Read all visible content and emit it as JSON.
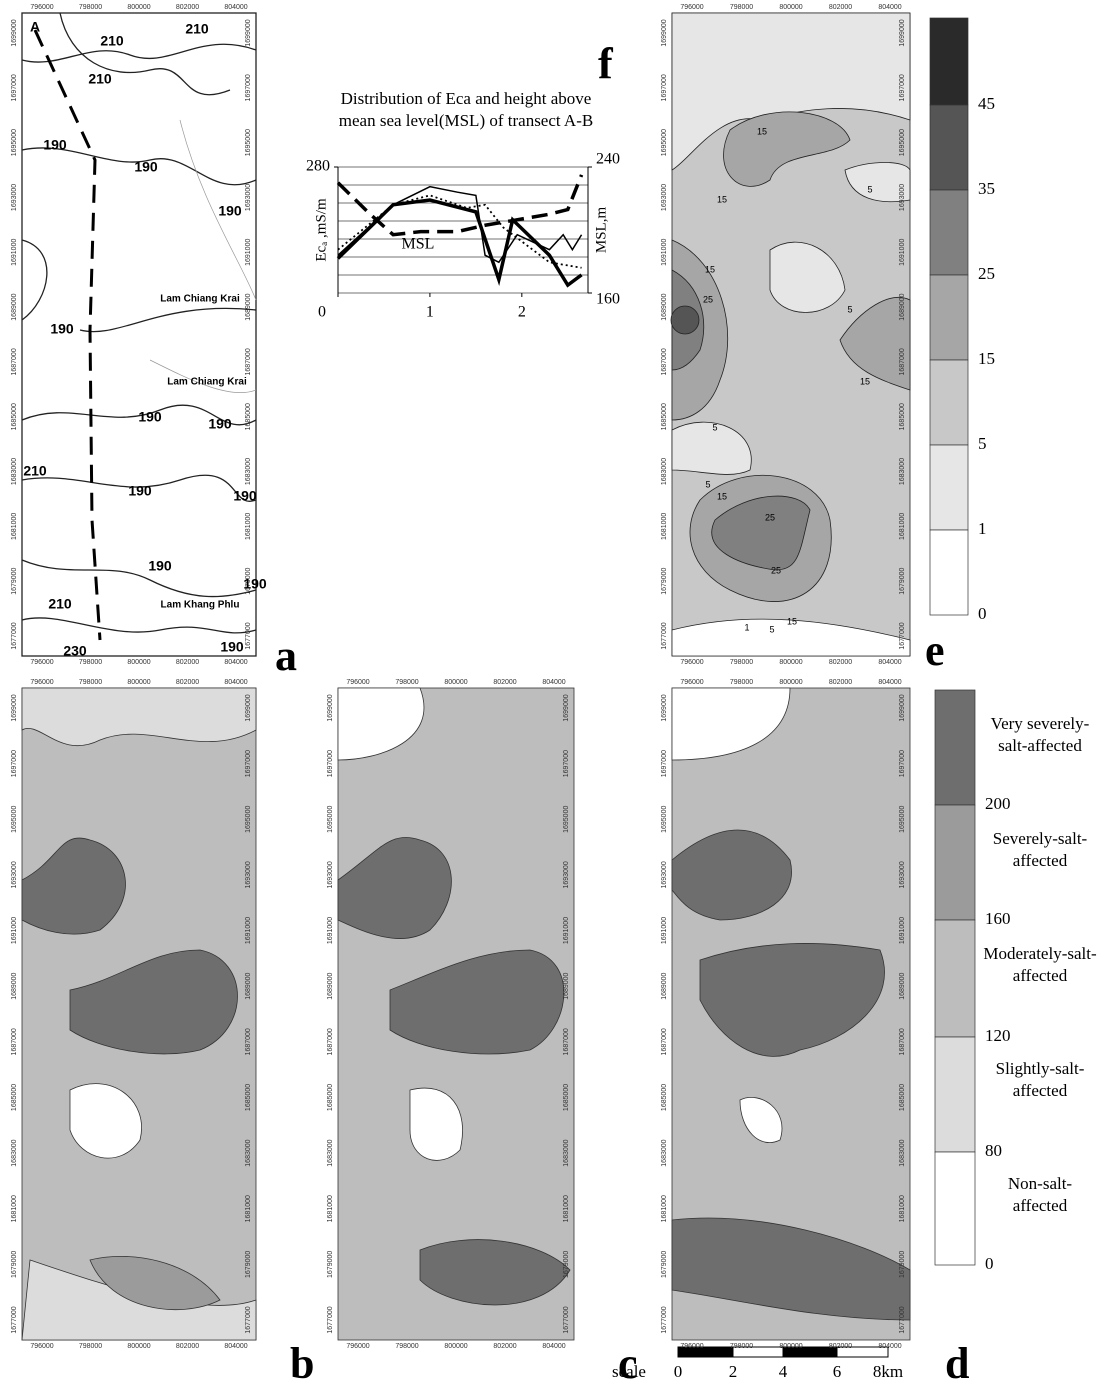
{
  "panel_labels": [
    "a",
    "b",
    "c",
    "d",
    "e",
    "f"
  ],
  "map_axes": {
    "x_labels": [
      "796000",
      "798000",
      "800000",
      "802000",
      "804000"
    ],
    "y_labels": [
      "1699000",
      "1697000",
      "1695000",
      "1693000",
      "1691000",
      "1689000",
      "1687000",
      "1685000",
      "1683000",
      "1681000",
      "1679000",
      "1677000"
    ]
  },
  "map_a": {
    "transect_label": "A",
    "contour_labels": [
      "210",
      "210",
      "210",
      "190",
      "190",
      "190",
      "190",
      "190",
      "190",
      "210",
      "190",
      "190",
      "190",
      "190",
      "210",
      "190",
      "230"
    ],
    "place_names": [
      "Lam Chiang Krai",
      "Lam Chiang Krai",
      "Lam Khang Phlu"
    ]
  },
  "map_e": {
    "contour_labels": [
      "15",
      "15",
      "5",
      "15",
      "25",
      "5",
      "15",
      "5",
      "5",
      "15",
      "25",
      "25",
      "15",
      "1",
      "5"
    ],
    "legend_labels": [
      "45",
      "35",
      "25",
      "15",
      "5",
      "1",
      "0"
    ]
  },
  "salinity_legend": {
    "classes": [
      [
        "Very severely-",
        "salt-affected"
      ],
      [
        "Severely-salt-",
        "affected"
      ],
      [
        "Moderately-salt-",
        "affected"
      ],
      [
        "Slightly-salt-",
        "affected"
      ],
      [
        "Non-salt-",
        "affected"
      ]
    ],
    "boundaries": [
      "200",
      "160",
      "120",
      "80",
      "0"
    ]
  },
  "scale_bar": {
    "title": "scale",
    "labels": [
      "0",
      "2",
      "4",
      "6",
      "8km"
    ]
  },
  "chart_data": {
    "type": "line",
    "title_lines": [
      "Distribution of Eca and height above",
      "mean sea level(MSL) of transect A-B"
    ],
    "y_label": "Ecₐ ,mS/m",
    "y2_label": "MSL,m",
    "annotation": "MSL",
    "xlim": [
      0,
      2.72
    ],
    "xticks": [
      0,
      1,
      2
    ],
    "ylim": [
      120,
      280
    ],
    "yticks": [
      280
    ],
    "y2lim": [
      160,
      240
    ],
    "y2ticks": [
      160,
      240
    ],
    "series": [
      {
        "color": "#000000",
        "style": "thick",
        "x": [
          0,
          0.6,
          1.0,
          1.5,
          1.75,
          1.9,
          2.3,
          2.5,
          2.65
        ],
        "values": [
          164,
          232,
          238,
          223,
          137,
          213,
          168,
          130,
          143
        ]
      },
      {
        "color": "#000000",
        "style": "thin",
        "x": [
          0,
          0.6,
          1.0,
          1.3,
          1.5,
          1.6,
          1.75,
          1.95,
          2.3,
          2.45,
          2.55,
          2.65
        ],
        "values": [
          168,
          232,
          255,
          248,
          244,
          168,
          159,
          194,
          175,
          194,
          175,
          194
        ]
      },
      {
        "color": "#000000",
        "style": "dotted",
        "x": [
          0,
          0.6,
          1.0,
          1.4,
          1.6,
          1.8,
          2.3,
          2.65
        ],
        "values": [
          175,
          232,
          244,
          228,
          232,
          203,
          159,
          152
        ]
      },
      {
        "color": "#000000",
        "style": "dashed",
        "axis": "y2",
        "x": [
          0,
          0.35,
          0.6,
          0.9,
          1.3,
          1.6,
          1.9,
          2.1,
          2.3,
          2.5,
          2.65
        ],
        "values": [
          230,
          210,
          197,
          199,
          199,
          203,
          206,
          208,
          210,
          213,
          235
        ]
      }
    ]
  }
}
